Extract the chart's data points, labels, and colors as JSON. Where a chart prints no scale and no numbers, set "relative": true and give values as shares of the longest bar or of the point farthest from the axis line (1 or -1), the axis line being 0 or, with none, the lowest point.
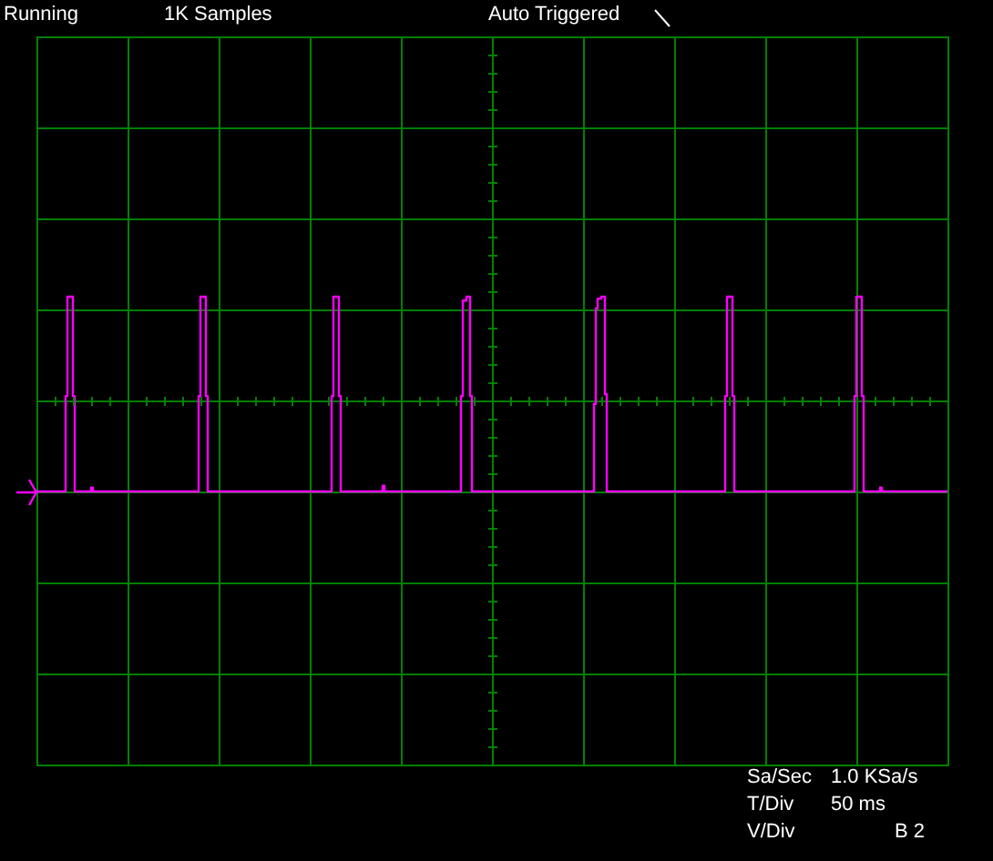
{
  "chart_data": {
    "type": "step",
    "relative": true,
    "color": "#ff00ff",
    "grid": true,
    "tick_labels": false,
    "annotations": [
      "Running",
      "1K Samples",
      "Auto Triggered",
      "Sa/Sec",
      "1.0 KSa/s",
      "T/Div",
      "50 ms",
      "V/Div",
      "B 2"
    ],
    "categories": [
      null,
      null,
      null,
      null,
      null,
      null,
      null,
      null,
      null,
      null,
      null,
      null,
      null,
      null,
      null,
      null,
      null,
      null,
      null,
      null,
      null,
      null,
      null,
      null,
      null,
      null,
      null,
      null,
      null,
      null,
      null,
      null,
      null,
      null,
      null,
      null,
      null,
      null,
      null,
      null,
      null,
      null,
      null,
      null,
      null,
      null,
      null,
      null,
      null,
      null,
      null,
      null,
      null,
      null,
      null,
      null,
      null,
      null,
      null,
      null,
      null,
      null,
      null,
      null,
      null,
      null,
      null,
      null,
      null,
      null,
      null,
      null,
      null,
      null,
      null,
      null,
      null,
      null,
      null,
      null,
      null,
      null,
      null,
      null,
      null,
      null,
      null,
      null,
      null,
      null,
      null,
      null,
      null,
      null,
      null,
      null,
      null,
      null,
      null,
      null,
      null,
      null,
      null,
      null,
      null,
      null,
      null,
      null,
      null,
      null,
      null,
      null,
      null,
      null,
      null,
      null,
      null,
      null,
      null,
      null,
      null,
      null,
      null,
      null,
      null,
      null,
      null,
      null,
      null,
      null,
      null,
      null,
      null,
      null,
      null,
      null,
      null,
      null,
      null,
      null,
      null,
      null,
      null,
      null,
      null,
      null,
      null,
      null,
      null,
      null,
      null,
      null,
      null,
      null,
      null,
      null,
      null,
      null,
      null,
      null,
      null,
      null,
      null,
      null,
      null,
      null,
      null,
      null,
      null,
      null,
      null,
      null,
      null,
      null,
      null,
      null,
      null,
      null,
      null,
      null,
      null,
      null,
      null,
      null,
      null,
      null,
      null,
      null,
      null,
      null,
      null,
      null,
      null,
      null,
      null,
      null,
      null,
      null,
      null,
      null,
      null,
      null,
      null,
      null,
      null,
      null,
      null,
      null,
      null,
      null,
      null,
      null,
      null,
      null,
      null,
      null,
      null,
      null,
      null,
      null,
      null,
      null,
      null,
      null,
      null,
      null,
      null,
      null,
      null,
      null,
      null,
      null,
      null,
      null,
      null,
      null,
      null,
      null,
      null,
      null,
      null,
      null,
      null,
      null,
      null,
      null,
      null,
      null,
      null,
      null,
      null,
      null,
      null,
      null,
      null,
      null,
      null,
      null,
      null,
      null,
      null,
      null,
      null,
      null,
      null,
      null,
      null,
      null,
      null,
      null,
      null,
      null,
      null,
      null,
      null,
      null,
      null,
      null,
      null,
      null,
      null,
      null,
      null,
      null,
      null,
      null,
      null,
      null,
      null,
      null,
      null,
      null,
      null,
      null,
      null,
      null,
      null,
      null,
      null,
      null,
      null,
      null,
      null,
      null,
      null,
      null,
      null,
      null,
      null,
      null,
      null,
      null,
      null,
      null,
      null,
      null,
      null,
      null,
      null,
      null,
      null,
      null,
      null,
      null,
      null,
      null,
      null,
      null,
      null,
      null,
      null,
      null,
      null,
      null,
      null,
      null,
      null,
      null,
      null,
      null,
      null,
      null,
      null,
      null,
      null,
      null,
      null,
      null,
      null,
      null,
      null,
      null,
      null,
      null,
      null,
      null,
      null,
      null,
      null,
      null,
      null,
      null,
      null,
      null,
      null,
      null,
      null,
      null,
      null,
      null,
      null,
      null,
      null,
      null,
      null,
      null,
      null,
      null,
      null,
      null,
      null,
      null,
      null,
      null,
      null,
      null,
      null,
      null,
      null,
      null,
      null,
      null,
      null,
      null,
      null,
      null,
      null,
      null,
      null,
      null,
      null,
      null,
      null,
      null,
      null,
      null,
      null,
      null,
      null,
      null,
      null,
      null,
      null,
      null,
      null,
      null,
      null,
      null,
      null,
      null,
      null,
      null,
      null,
      null,
      null,
      null,
      null,
      null,
      null,
      null,
      null,
      null,
      null,
      null,
      null,
      null,
      null,
      null,
      null,
      null,
      null,
      null,
      null,
      null,
      null,
      null,
      null,
      null,
      null,
      null,
      null,
      null,
      null,
      null,
      null,
      null,
      null,
      null,
      null,
      null,
      null,
      null,
      null,
      null,
      null,
      null,
      null,
      null,
      null,
      null,
      null,
      null,
      null,
      null,
      null,
      null,
      null,
      null,
      null,
      null,
      null,
      null,
      null,
      null,
      null,
      null,
      null,
      null,
      null,
      null,
      null,
      null,
      null,
      null,
      null,
      null,
      null,
      null,
      null,
      null,
      null
    ],
    "values": [
      0,
      0,
      0,
      0,
      0,
      0,
      0,
      0,
      0,
      0,
      0,
      0,
      0,
      0,
      0,
      0,
      0.49,
      1,
      1,
      1,
      0.49,
      0,
      0,
      0,
      0,
      0,
      0,
      0,
      0,
      0,
      0.02,
      0,
      0,
      0,
      0,
      0,
      0,
      0,
      0,
      0,
      0,
      0,
      0,
      0,
      0,
      0,
      0,
      0,
      0,
      0,
      0,
      0,
      0,
      0,
      0,
      0,
      0,
      0,
      0,
      0,
      0,
      0,
      0,
      0,
      0,
      0,
      0,
      0,
      0,
      0,
      0,
      0,
      0,
      0,
      0,
      0,
      0,
      0,
      0,
      0,
      0,
      0,
      0,
      0,
      0,
      0,
      0,
      0,
      0,
      0.49,
      1,
      1,
      1,
      0.49,
      0,
      0,
      0,
      0,
      0,
      0,
      0,
      0,
      0,
      0,
      0,
      0,
      0,
      0,
      0,
      0,
      0,
      0,
      0,
      0,
      0,
      0,
      0,
      0,
      0,
      0,
      0,
      0,
      0,
      0,
      0,
      0,
      0,
      0,
      0,
      0,
      0,
      0,
      0,
      0,
      0,
      0,
      0,
      0,
      0,
      0,
      0,
      0,
      0,
      0,
      0,
      0,
      0,
      0,
      0,
      0,
      0,
      0,
      0,
      0,
      0,
      0,
      0,
      0,
      0,
      0,
      0,
      0,
      0.49,
      1,
      1,
      1,
      0.49,
      0,
      0,
      0,
      0,
      0,
      0,
      0,
      0,
      0,
      0,
      0,
      0,
      0,
      0,
      0,
      0,
      0,
      0,
      0,
      0,
      0,
      0,
      0,
      0.03,
      0,
      0,
      0,
      0,
      0,
      0,
      0,
      0,
      0,
      0,
      0,
      0,
      0,
      0,
      0,
      0,
      0,
      0,
      0,
      0,
      0,
      0,
      0,
      0,
      0,
      0,
      0,
      0,
      0,
      0,
      0,
      0,
      0,
      0,
      0,
      0,
      0,
      0,
      0,
      0,
      0,
      0,
      0.49,
      0.98,
      0.98,
      1,
      1,
      0.49,
      0,
      0,
      0,
      0,
      0,
      0,
      0,
      0,
      0,
      0,
      0,
      0,
      0,
      0,
      0,
      0,
      0,
      0,
      0,
      0,
      0,
      0,
      0,
      0,
      0,
      0,
      0,
      0,
      0,
      0,
      0,
      0,
      0,
      0,
      0,
      0,
      0,
      0,
      0,
      0,
      0,
      0,
      0,
      0,
      0,
      0,
      0,
      0,
      0,
      0,
      0,
      0,
      0,
      0,
      0,
      0,
      0,
      0,
      0,
      0,
      0,
      0,
      0,
      0,
      0,
      0,
      0,
      0.45,
      0.94,
      0.99,
      0.99,
      1,
      1,
      0.5,
      0,
      0,
      0,
      0,
      0,
      0,
      0,
      0,
      0,
      0,
      0,
      0,
      0,
      0,
      0,
      0,
      0,
      0,
      0,
      0,
      0,
      0,
      0,
      0,
      0,
      0,
      0,
      0,
      0,
      0,
      0,
      0,
      0,
      0,
      0,
      0,
      0,
      0,
      0,
      0,
      0,
      0,
      0,
      0,
      0,
      0,
      0,
      0,
      0,
      0,
      0,
      0,
      0,
      0,
      0,
      0,
      0,
      0,
      0,
      0,
      0,
      0,
      0,
      0,
      0,
      0.49,
      1,
      1,
      1,
      0.49,
      0,
      0,
      0,
      0,
      0,
      0,
      0,
      0,
      0,
      0,
      0,
      0,
      0,
      0,
      0,
      0,
      0,
      0,
      0,
      0,
      0,
      0,
      0,
      0,
      0,
      0,
      0,
      0,
      0,
      0,
      0,
      0,
      0,
      0,
      0,
      0,
      0,
      0,
      0,
      0,
      0,
      0,
      0,
      0,
      0,
      0,
      0,
      0,
      0,
      0,
      0,
      0,
      0,
      0,
      0,
      0,
      0,
      0,
      0,
      0,
      0,
      0,
      0,
      0,
      0,
      0,
      0.49,
      1,
      1,
      1,
      0.49,
      0,
      0,
      0,
      0,
      0,
      0,
      0,
      0,
      0,
      0.02,
      0,
      0,
      0,
      0,
      0,
      0,
      0,
      0,
      0,
      0,
      0,
      0,
      0,
      0,
      0,
      0,
      0,
      0,
      0,
      0,
      0,
      0,
      0,
      0,
      0,
      0,
      0,
      0,
      0,
      0,
      0,
      0,
      0,
      0,
      0,
      0,
      0
    ]
  }
}
